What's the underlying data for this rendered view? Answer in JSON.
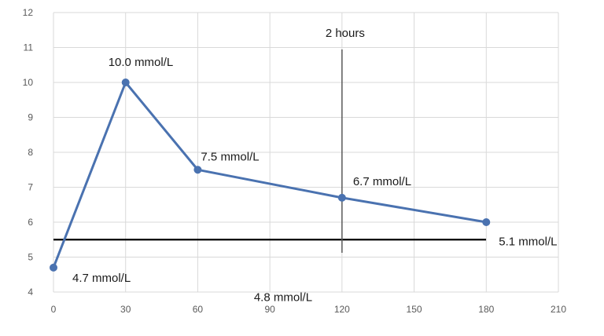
{
  "chart_data": {
    "type": "line",
    "x": [
      0,
      30,
      60,
      120,
      180
    ],
    "series": [
      {
        "values": [
          4.7,
          10.0,
          7.5,
          6.7,
          6.0
        ],
        "color": "#4a72b0"
      }
    ],
    "xlim": [
      0,
      210
    ],
    "ylim": [
      4,
      12
    ],
    "x_ticks": [
      0,
      30,
      60,
      90,
      120,
      150,
      180,
      210
    ],
    "y_ticks": [
      4,
      5,
      6,
      7,
      8,
      9,
      10,
      11,
      12
    ],
    "grid": true,
    "reference_line": {
      "value": 5.5,
      "color": "#000000"
    },
    "marker_line": {
      "x": 120,
      "label": "2 hours",
      "color": "#595959"
    },
    "annotations": [
      {
        "text": "10.0 mmol/L",
        "x": 30,
        "y": 10.0
      },
      {
        "text": "7.5 mmol/L",
        "x": 60,
        "y": 7.5
      },
      {
        "text": "6.7 mmol/L",
        "x": 120,
        "y": 6.7
      },
      {
        "text": "4.7 mmol/L",
        "x": 0,
        "y": 4.7
      },
      {
        "text": "4.8 mmol/L",
        "x": 120,
        "y": 4.8
      },
      {
        "text": "5.1 mmol/L",
        "x": 180,
        "y": 5.5
      }
    ],
    "colors": {
      "grid": "#d9d9d9",
      "tick_text": "#595959"
    }
  }
}
